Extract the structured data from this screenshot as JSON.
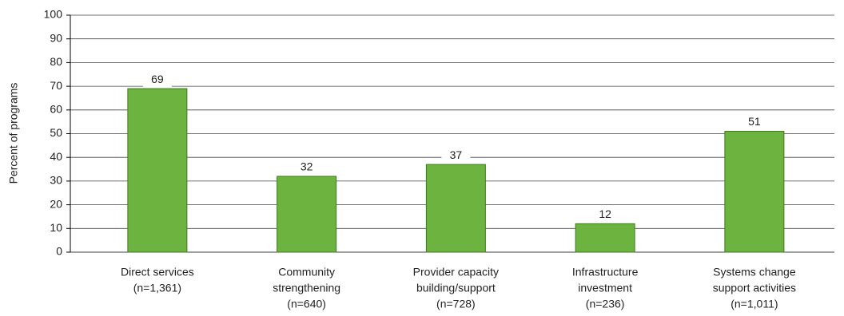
{
  "chart_data": {
    "type": "bar",
    "y_label": "Percent of programs",
    "categories": [
      [
        "Direct services",
        "(n=1,361)"
      ],
      [
        "Community",
        "strengthening",
        "(n=640)"
      ],
      [
        "Provider capacity",
        "building/support",
        "(n=728)"
      ],
      [
        "Infrastructure",
        "investment",
        "(n=236)"
      ],
      [
        "Systems change",
        "support activities",
        "(n=1,011)"
      ]
    ],
    "values": [
      69,
      32,
      37,
      12,
      51
    ],
    "color": "#6cb33f",
    "ylim": [
      0,
      100
    ],
    "yticks": [
      0,
      10,
      20,
      30,
      40,
      50,
      60,
      70,
      80,
      90,
      100
    ],
    "grid": true
  }
}
